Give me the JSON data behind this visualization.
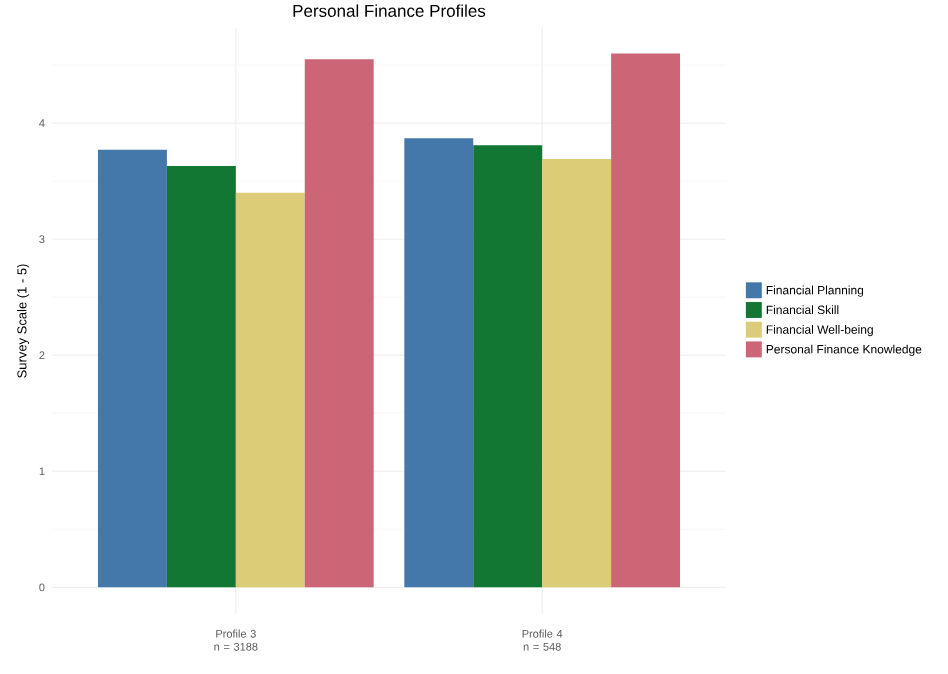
{
  "chart_data": {
    "type": "bar",
    "title": "Personal Finance Profiles",
    "ylabel": "Survey Scale (1 - 5)",
    "categories": [
      "Profile 3 n = 3188",
      "Profile 4 n = 548"
    ],
    "series": [
      {
        "name": "Financial Planning",
        "color": "#4477aa",
        "values": [
          3.77,
          3.87
        ]
      },
      {
        "name": "Financial Skill",
        "color": "#117733",
        "values": [
          3.63,
          3.81
        ]
      },
      {
        "name": "Financial Well-being",
        "color": "#ddcc77",
        "values": [
          3.4,
          3.69
        ]
      },
      {
        "name": "Personal Finance Knowledge",
        "color": "#cc6677",
        "values": [
          4.55,
          4.6
        ]
      }
    ],
    "ylim": [
      -0.23,
      4.82
    ],
    "yticks": [
      0,
      1,
      2,
      3,
      4
    ],
    "grid": true,
    "legend": "right"
  }
}
